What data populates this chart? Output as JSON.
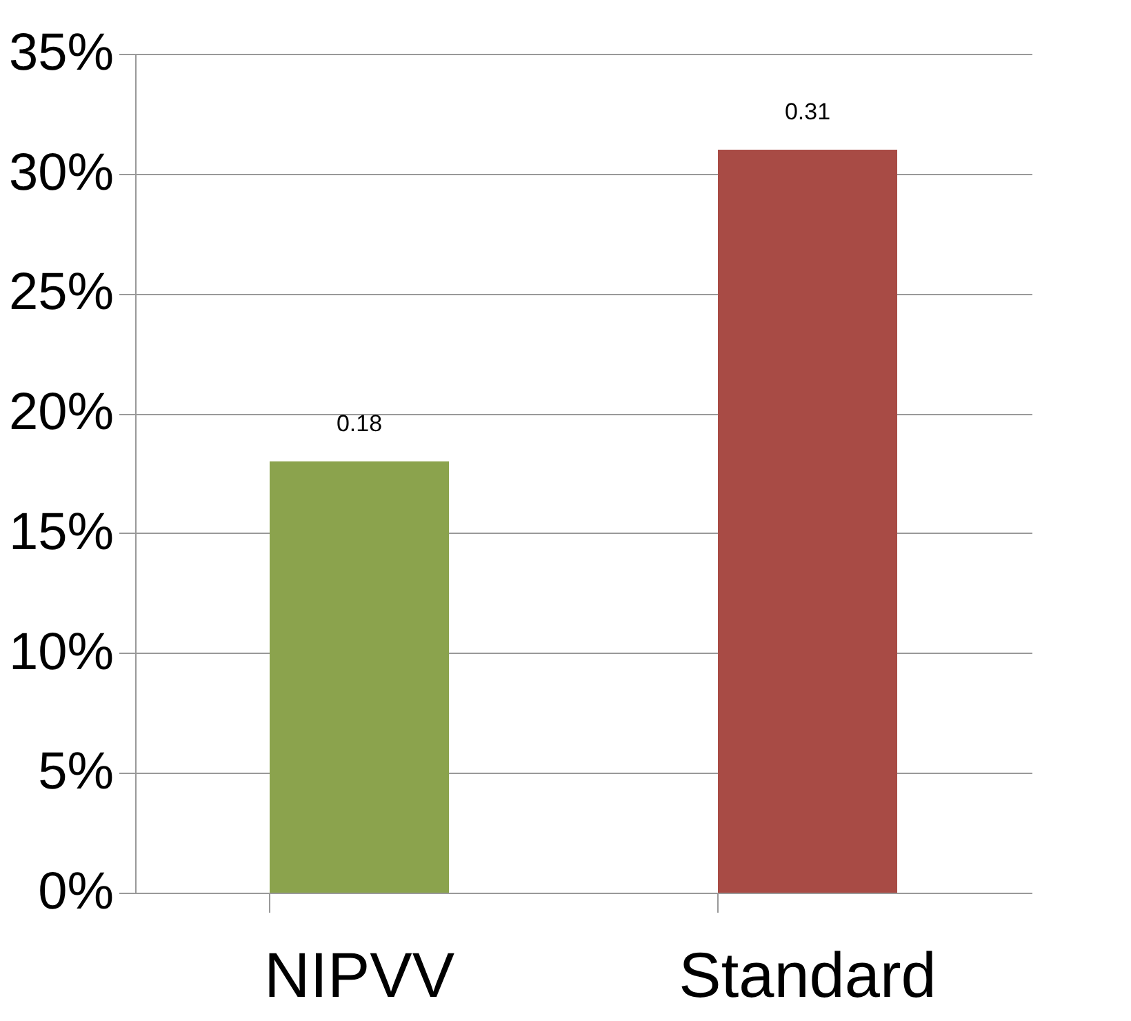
{
  "chart_data": {
    "type": "bar",
    "categories": [
      "NIPVV",
      "Standard"
    ],
    "values": [
      0.18,
      0.31
    ],
    "colors": [
      "#8ba34d",
      "#a84b45"
    ],
    "ylim": [
      0,
      0.35
    ],
    "yticks": [
      {
        "value": 0,
        "label": "0%"
      },
      {
        "value": 0.05,
        "label": "5%"
      },
      {
        "value": 0.1,
        "label": "10%"
      },
      {
        "value": 0.15,
        "label": "15%"
      },
      {
        "value": 0.2,
        "label": "20%"
      },
      {
        "value": 0.25,
        "label": "25%"
      },
      {
        "value": 0.3,
        "label": "30%"
      },
      {
        "value": 0.35,
        "label": "35%"
      }
    ],
    "grid": "y",
    "data_labels": true
  }
}
